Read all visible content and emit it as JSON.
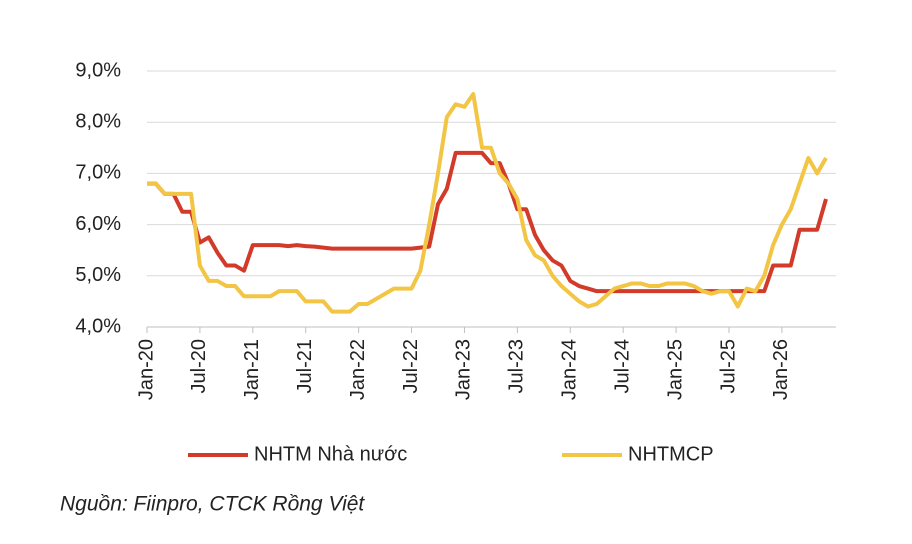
{
  "chart_data": {
    "type": "line",
    "categories": [
      "Jan-20",
      null,
      null,
      null,
      null,
      null,
      "Jul-20",
      null,
      null,
      null,
      null,
      null,
      "Jan-21",
      null,
      null,
      null,
      null,
      null,
      "Jul-21",
      null,
      null,
      null,
      null,
      null,
      "Jan-22",
      null,
      null,
      null,
      null,
      null,
      "Jul-22",
      null,
      null,
      null,
      null,
      null,
      "Jan-23",
      null,
      null,
      null,
      null,
      null,
      "Jul-23",
      null,
      null,
      null,
      null,
      null,
      "Jan-24",
      null,
      null,
      null,
      null,
      null,
      "Jul-24",
      null,
      null,
      null,
      null,
      null,
      "Jan-25",
      null,
      null,
      null,
      null,
      null,
      "Jul-25",
      null,
      null,
      null,
      null,
      null,
      "Jan-26",
      null,
      null,
      null,
      null,
      null
    ],
    "series": [
      {
        "name": "NHTM Nhà nước",
        "color": "#d23a2a",
        "values": [
          6.8,
          6.8,
          6.6,
          6.6,
          6.25,
          6.25,
          5.65,
          5.75,
          5.45,
          5.2,
          5.2,
          5.1,
          5.6,
          5.6,
          5.6,
          5.6,
          5.58,
          5.6,
          5.58,
          5.57,
          5.55,
          5.53,
          5.53,
          5.53,
          5.53,
          5.53,
          5.53,
          5.53,
          5.53,
          5.53,
          5.53,
          5.55,
          5.57,
          6.4,
          6.7,
          7.4,
          7.4,
          7.4,
          7.4,
          7.2,
          7.2,
          6.8,
          6.3,
          6.3,
          5.8,
          5.5,
          5.3,
          5.2,
          4.9,
          4.8,
          4.75,
          4.7,
          4.7,
          4.7,
          4.7,
          4.7,
          4.7,
          4.7,
          4.7,
          4.7,
          4.7,
          4.7,
          4.7,
          4.7,
          4.7,
          4.7,
          4.7,
          4.7,
          4.7,
          4.7,
          4.7,
          5.2,
          5.2,
          5.2,
          5.9,
          5.9,
          5.9,
          6.5
        ]
      },
      {
        "name": "NHTMCP",
        "color": "#f2c545",
        "values": [
          6.8,
          6.8,
          6.6,
          6.6,
          6.6,
          6.6,
          5.2,
          4.9,
          4.9,
          4.8,
          4.8,
          4.6,
          4.6,
          4.6,
          4.6,
          4.7,
          4.7,
          4.7,
          4.5,
          4.5,
          4.5,
          4.3,
          4.3,
          4.3,
          4.45,
          4.45,
          4.55,
          4.65,
          4.75,
          4.75,
          4.75,
          5.1,
          6.0,
          7.0,
          8.1,
          8.35,
          8.3,
          8.55,
          7.5,
          7.5,
          7.0,
          6.8,
          6.5,
          5.7,
          5.4,
          5.3,
          5.0,
          4.8,
          4.65,
          4.5,
          4.4,
          4.45,
          4.6,
          4.75,
          4.8,
          4.85,
          4.85,
          4.8,
          4.8,
          4.85,
          4.85,
          4.85,
          4.8,
          4.7,
          4.65,
          4.7,
          4.7,
          4.4,
          4.75,
          4.7,
          5.0,
          5.6,
          6.0,
          6.3,
          6.8,
          7.3,
          7.0,
          7.3
        ]
      }
    ],
    "ylim": [
      4,
      9
    ],
    "yticks": [
      {
        "value": 4,
        "label": "4,0%"
      },
      {
        "value": 5,
        "label": "5,0%"
      },
      {
        "value": 6,
        "label": "6,0%"
      },
      {
        "value": 7,
        "label": "7,0%"
      },
      {
        "value": 8,
        "label": "8,0%"
      },
      {
        "value": 9,
        "label": "9,0%"
      }
    ],
    "grid": true,
    "source": "Nguồn: Fiinpro, CTCK Rồng Việt"
  }
}
